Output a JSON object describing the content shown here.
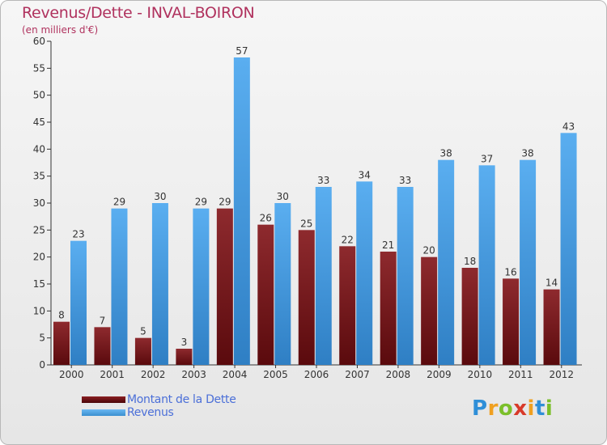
{
  "title": "Revenus/Dette - INVAL-BOIRON",
  "subtitle": "(en milliers d'€)",
  "colors": {
    "title": "#b0325e",
    "dette": "#7a1a1e",
    "revenus": "#4a9fe0",
    "legend_text": "#4b6fd8"
  },
  "legend": [
    {
      "label": "Montant de la Dette",
      "color": "#6a0f12"
    },
    {
      "label": "Revenus",
      "color": "#4a9fe0"
    }
  ],
  "logo": {
    "text": "Proxiti",
    "letter_colors": [
      "#2f8fd8",
      "#f0a020",
      "#7bbf2a",
      "#d83a2a",
      "#f0a020",
      "#2f8fd8",
      "#7bbf2a"
    ]
  },
  "chart_data": {
    "type": "bar",
    "title": "Revenus/Dette - INVAL-BOIRON",
    "subtitle": "(en milliers d'€)",
    "categories": [
      "2000",
      "2001",
      "2002",
      "2003",
      "2004",
      "2005",
      "2006",
      "2007",
      "2008",
      "2009",
      "2010",
      "2011",
      "2012"
    ],
    "series": [
      {
        "name": "Montant de la Dette",
        "values": [
          8,
          7,
          5,
          3,
          29,
          26,
          25,
          22,
          21,
          20,
          18,
          16,
          14
        ]
      },
      {
        "name": "Revenus",
        "values": [
          23,
          29,
          30,
          29,
          57,
          30,
          33,
          34,
          33,
          38,
          37,
          38,
          43
        ]
      }
    ],
    "ylim": [
      0,
      60
    ],
    "yticks": [
      0,
      5,
      10,
      15,
      20,
      25,
      30,
      35,
      40,
      45,
      50,
      55,
      60
    ],
    "grid": false,
    "legend_position": "bottom-left"
  }
}
